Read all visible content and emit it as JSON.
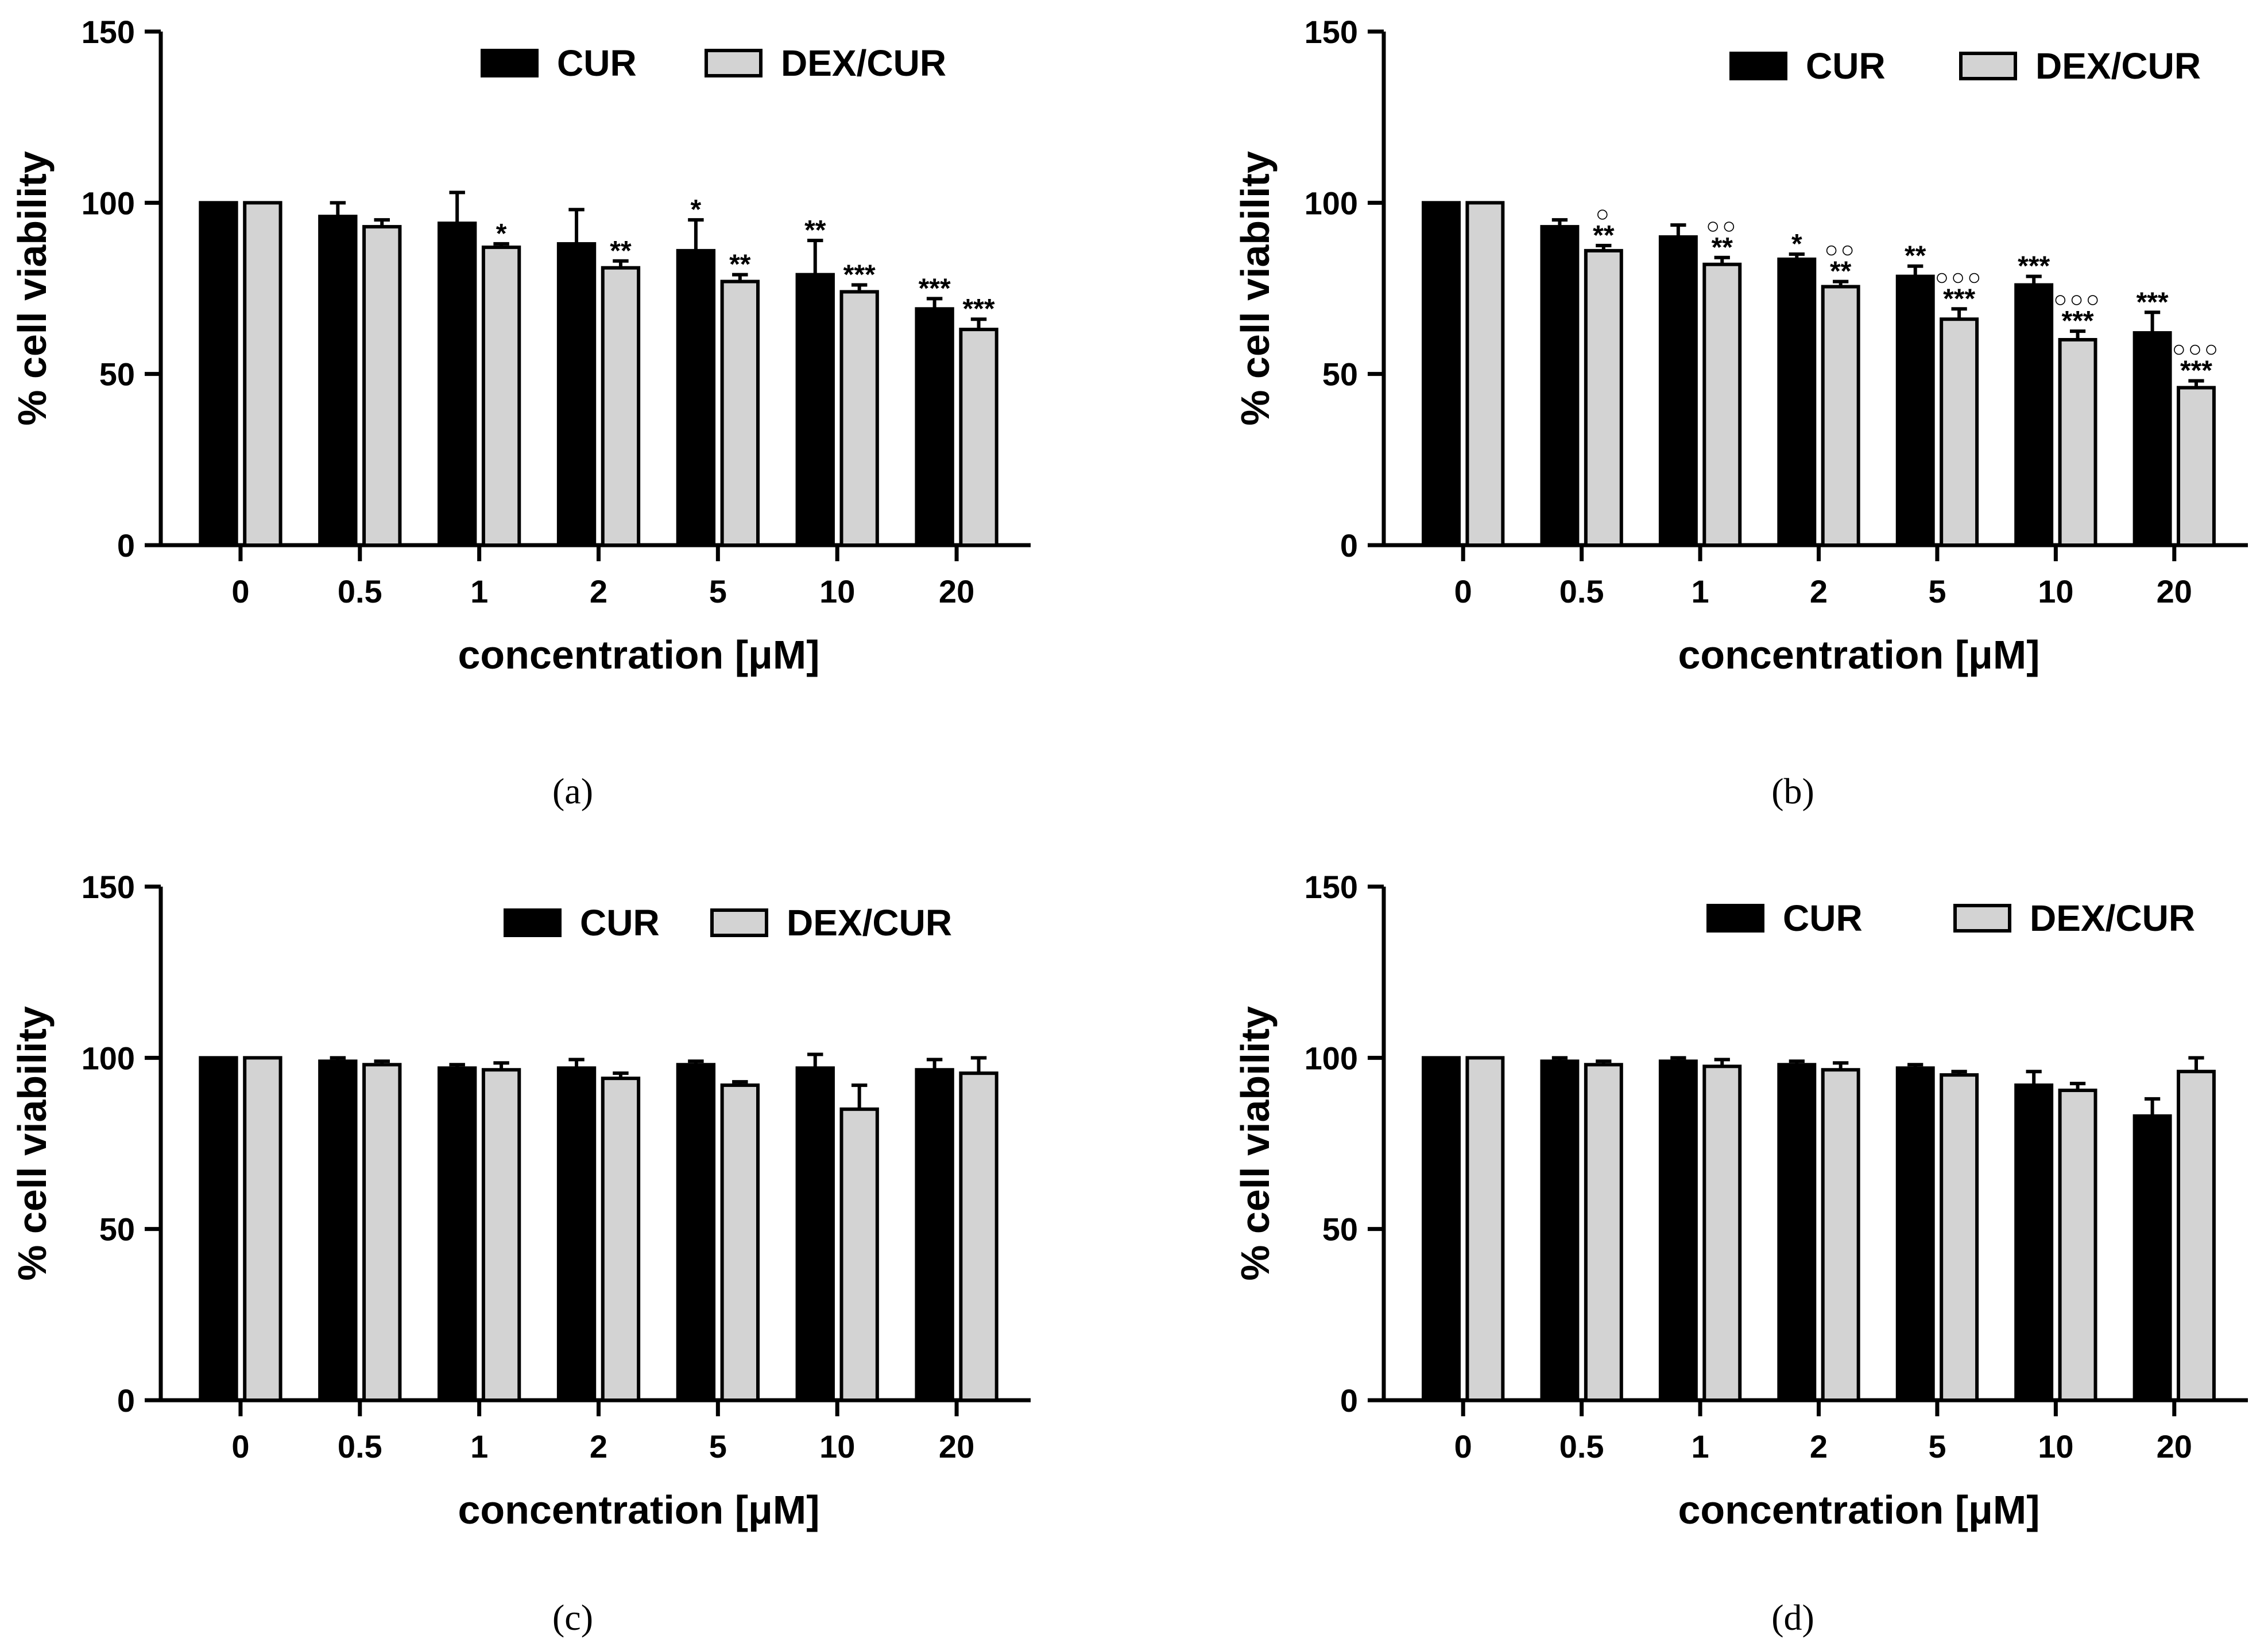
{
  "figure": {
    "fonts": {
      "ui": "Liberation Sans"
    },
    "colors": {
      "cur": "#000000",
      "dex_cur": "#d3d3d3",
      "axis": "#000000",
      "error_bar": "#000000"
    }
  },
  "chart_data": [
    {
      "type": "bar",
      "panel": "(a)",
      "title": "",
      "xlabel": "concentration [μM]",
      "ylabel": "% cell viability",
      "ylim": [
        0,
        150
      ],
      "yticks": [
        "0",
        "50",
        "100",
        "150"
      ],
      "categories": [
        "0",
        "0.5",
        "1",
        "2",
        "5",
        "10",
        "20"
      ],
      "legend": {
        "placement": "top-right",
        "entries": [
          "CUR",
          "DEX/CUR"
        ]
      },
      "series": [
        {
          "name": "CUR",
          "color": "#000000",
          "values": [
            100,
            96,
            94,
            88,
            86,
            79,
            69
          ],
          "errors": [
            0,
            4,
            9,
            10,
            9,
            10,
            3
          ],
          "significance": [
            "",
            "",
            "",
            "",
            "*",
            "**",
            "***"
          ],
          "marks": [
            "",
            "",
            "",
            "",
            "",
            "",
            ""
          ]
        },
        {
          "name": "DEX/CUR",
          "color": "#d3d3d3",
          "values": [
            100,
            93,
            87,
            81,
            77,
            74,
            63
          ],
          "errors": [
            0,
            2,
            1,
            2,
            2,
            2,
            3
          ],
          "significance": [
            "",
            "",
            "*",
            "**",
            "**",
            "***",
            "***"
          ],
          "marks": [
            "",
            "",
            "",
            "",
            "",
            "",
            ""
          ]
        }
      ]
    },
    {
      "type": "bar",
      "panel": "(b)",
      "title": "",
      "xlabel": "concentration [μM]",
      "ylabel": "% cell viability",
      "ylim": [
        0,
        150
      ],
      "yticks": [
        "0",
        "50",
        "100",
        "150"
      ],
      "categories": [
        "0",
        "0.5",
        "1",
        "2",
        "5",
        "10",
        "20"
      ],
      "legend": {
        "placement": "top-right",
        "entries": [
          "CUR",
          "DEX/CUR"
        ]
      },
      "series": [
        {
          "name": "CUR",
          "color": "#000000",
          "values": [
            100,
            93,
            90,
            83.5,
            78.5,
            76,
            62
          ],
          "errors": [
            0,
            2,
            3.5,
            1.5,
            3,
            2.5,
            6
          ],
          "significance": [
            "",
            "",
            "",
            "*",
            "**",
            "***",
            "***"
          ],
          "marks": [
            "",
            "",
            "",
            "",
            "",
            "",
            ""
          ]
        },
        {
          "name": "DEX/CUR",
          "color": "#d3d3d3",
          "values": [
            100,
            86,
            82,
            75.5,
            66,
            60,
            46
          ],
          "errors": [
            0,
            1.5,
            2,
            1.5,
            3,
            2.5,
            2
          ],
          "significance": [
            "",
            "**",
            "**",
            "**",
            "***",
            "***",
            "***"
          ],
          "marks": [
            "",
            "○",
            "○○",
            "○○",
            "○○○",
            "○○○",
            "○○○"
          ]
        }
      ]
    },
    {
      "type": "bar",
      "panel": "(c)",
      "title": "",
      "xlabel": "concentration [μM]",
      "ylabel": "% cell viability",
      "ylim": [
        0,
        150
      ],
      "yticks": [
        "0",
        "50",
        "100",
        "150"
      ],
      "categories": [
        "0",
        "0.5",
        "1",
        "2",
        "5",
        "10",
        "20"
      ],
      "legend": {
        "placement": "top-right",
        "entries": [
          "CUR",
          "DEX/CUR"
        ]
      },
      "series": [
        {
          "name": "CUR",
          "color": "#000000",
          "values": [
            100,
            99,
            97,
            97,
            98,
            97,
            96.5
          ],
          "errors": [
            0,
            1,
            1,
            2.5,
            1,
            4,
            3
          ],
          "significance": [
            "",
            "",
            "",
            "",
            "",
            "",
            ""
          ],
          "marks": [
            "",
            "",
            "",
            "",
            "",
            "",
            ""
          ]
        },
        {
          "name": "DEX/CUR",
          "color": "#d3d3d3",
          "values": [
            100,
            98,
            96.5,
            94,
            92,
            85,
            95.5
          ],
          "errors": [
            0,
            1,
            2,
            1.5,
            1,
            7,
            4.5
          ],
          "significance": [
            "",
            "",
            "",
            "",
            "",
            "",
            ""
          ],
          "marks": [
            "",
            "",
            "",
            "",
            "",
            "",
            ""
          ]
        }
      ]
    },
    {
      "type": "bar",
      "panel": "(d)",
      "title": "",
      "xlabel": "concentration [μM]",
      "ylabel": "% cell viability",
      "ylim": [
        0,
        150
      ],
      "yticks": [
        "0",
        "50",
        "100",
        "150"
      ],
      "categories": [
        "0",
        "0.5",
        "1",
        "2",
        "5",
        "10",
        "20"
      ],
      "legend": {
        "placement": "top-right",
        "entries": [
          "CUR",
          "DEX/CUR"
        ]
      },
      "series": [
        {
          "name": "CUR",
          "color": "#000000",
          "values": [
            100,
            99,
            99,
            98,
            97,
            92,
            83
          ],
          "errors": [
            0,
            1,
            1,
            1,
            1,
            4,
            5
          ],
          "significance": [
            "",
            "",
            "",
            "",
            "",
            "",
            ""
          ],
          "marks": [
            "",
            "",
            "",
            "",
            "",
            "",
            ""
          ]
        },
        {
          "name": "DEX/CUR",
          "color": "#d3d3d3",
          "values": [
            100,
            98,
            97.5,
            96.5,
            95,
            90.5,
            96
          ],
          "errors": [
            0,
            1,
            2,
            2,
            1,
            2,
            4
          ],
          "significance": [
            "",
            "",
            "",
            "",
            "",
            "",
            ""
          ],
          "marks": [
            "",
            "",
            "",
            "",
            "",
            "",
            ""
          ]
        }
      ]
    }
  ]
}
